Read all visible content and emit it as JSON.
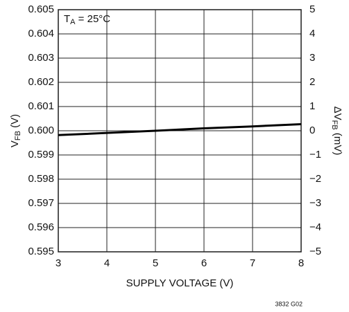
{
  "chart_data": {
    "type": "line",
    "x": [
      3,
      4,
      5,
      6,
      7,
      8
    ],
    "series": [
      {
        "color": "#000000",
        "values": [
          0.59982,
          0.59991,
          0.6,
          0.6001,
          0.60018,
          0.60027
        ]
      }
    ],
    "xlim": [
      3,
      8
    ],
    "xticks": [
      3,
      4,
      5,
      6,
      7,
      8
    ],
    "ylim": [
      0.595,
      0.605
    ],
    "yticks": [
      0.595,
      0.596,
      0.597,
      0.598,
      0.599,
      {
        "value": 0.6,
        "label": "0.600"
      },
      0.601,
      0.602,
      0.603,
      0.604,
      0.605
    ],
    "y2lim": [
      -5,
      5
    ],
    "y2ticks": [
      {
        "value": -5,
        "label": "−5"
      },
      {
        "value": -4,
        "label": "−4"
      },
      {
        "value": -3,
        "label": "−3"
      },
      {
        "value": -2,
        "label": "−2"
      },
      {
        "value": -1,
        "label": "−1"
      },
      0,
      1,
      2,
      3,
      4,
      5
    ],
    "xlabel": "SUPPLY VOLTAGE (V)",
    "ylabel": {
      "main": "V",
      "sub": "FB",
      "unit": " (V)"
    },
    "y2label": {
      "main": "ΔV",
      "sub": "FB",
      "unit": " (mV)"
    },
    "annotation": {
      "main": "T",
      "sub": "A",
      "rest": " = 25°C"
    },
    "footnote": "3832 G02",
    "grid": true
  }
}
